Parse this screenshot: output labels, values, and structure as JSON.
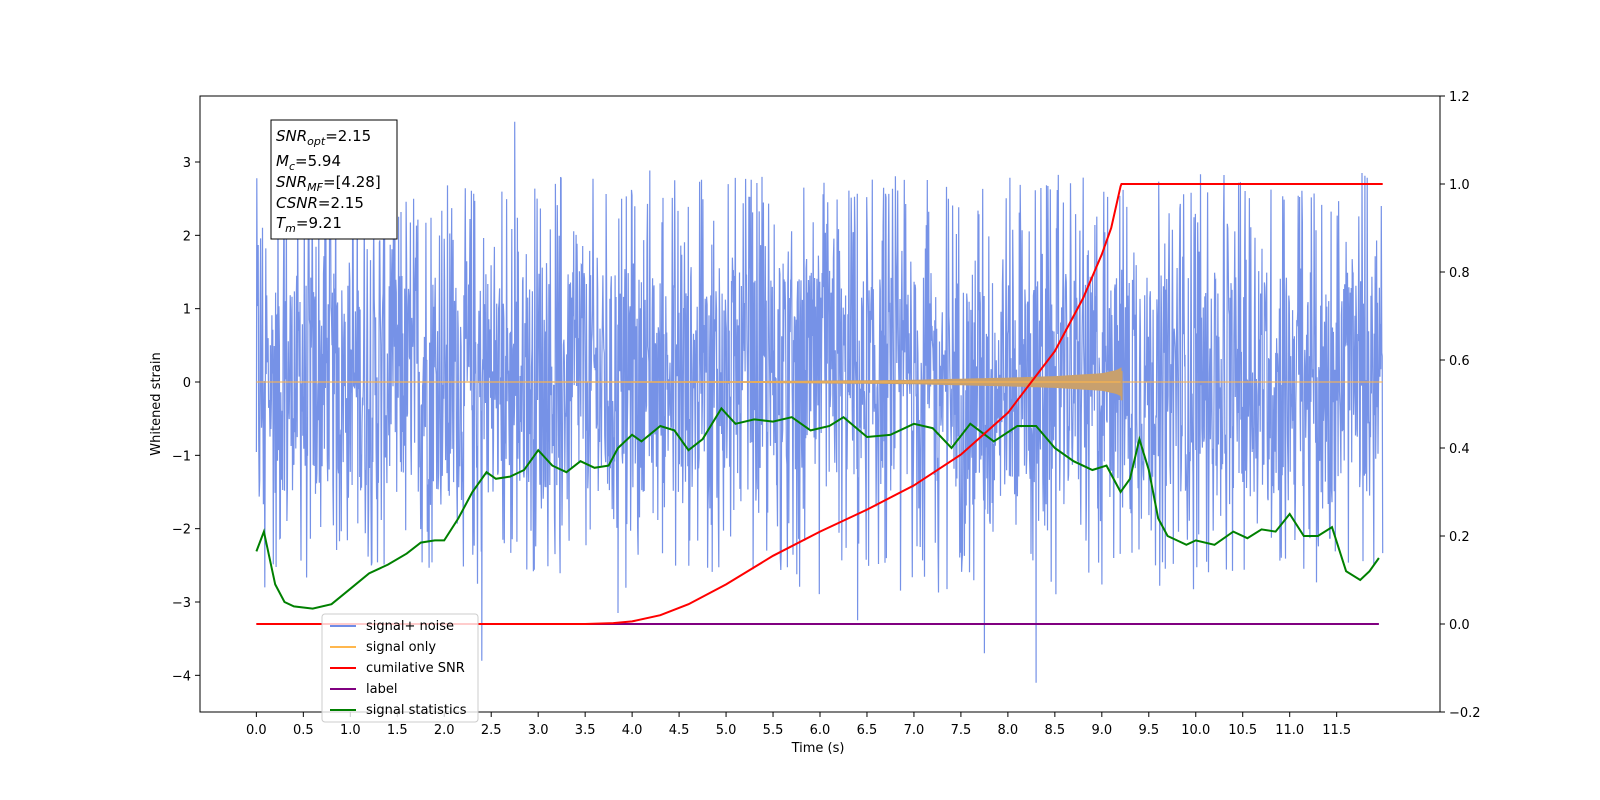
{
  "chart_data": {
    "type": "line",
    "title": "",
    "xlabel": "Time (s)",
    "ylabel": "Whitened strain",
    "ylabel_right": "",
    "xlim": [
      -0.6,
      12.6
    ],
    "ylim": [
      -4.5,
      3.9
    ],
    "ylim_right": [
      -0.2,
      1.2
    ],
    "x_ticks": [
      0.0,
      0.5,
      1.0,
      1.5,
      2.0,
      2.5,
      3.0,
      3.5,
      4.0,
      4.5,
      5.0,
      5.5,
      6.0,
      6.5,
      7.0,
      7.5,
      8.0,
      8.5,
      9.0,
      9.5,
      10.0,
      10.5,
      11.0,
      11.5
    ],
    "x_tick_labels": [
      "0.0",
      "0.5",
      "1.0",
      "1.5",
      "2.0",
      "2.5",
      "3.0",
      "3.5",
      "4.0",
      "4.5",
      "5.0",
      "5.5",
      "6.0",
      "6.5",
      "7.0",
      "7.5",
      "8.0",
      "8.5",
      "9.0",
      "9.5",
      "10.0",
      "10.5",
      "11.0",
      "11.5"
    ],
    "y_ticks": [
      -4,
      -3,
      -2,
      -1,
      0,
      1,
      2,
      3
    ],
    "y_tick_labels": [
      "−4",
      "−3",
      "−2",
      "−1",
      "0",
      "1",
      "2",
      "3"
    ],
    "y_ticks_right": [
      -0.2,
      0.0,
      0.2,
      0.4,
      0.6,
      0.8,
      1.0,
      1.2
    ],
    "y_tick_labels_right": [
      "−0.2",
      "0.0",
      "0.2",
      "0.4",
      "0.6",
      "0.8",
      "1.0",
      "1.2"
    ],
    "grid": false,
    "legend_position": "lower-left",
    "colors": {
      "signal_noise": "#6f8ce6",
      "signal_only": "#ffb74d",
      "signal_only_fill": "#c8a06e",
      "cumulative_snr": "#ff0000",
      "label": "#800080",
      "signal_statistics": "#008000"
    },
    "info_box": {
      "snr_opt": "=2.15",
      "mc": "=5.94",
      "snr_mf": "=[4.28]",
      "csnr": "=2.15",
      "tm": "=9.21"
    },
    "series": [
      {
        "name": "signal+ noise",
        "axis": "left",
        "x_range": [
          0.0,
          11.99
        ],
        "core_range": [
          -1.5,
          1.5
        ],
        "envelope_range": [
          -2.6,
          2.8
        ],
        "peaks": [
          [
            2.75,
            3.55
          ],
          [
            8.3,
            -4.1
          ],
          [
            2.4,
            -3.8
          ],
          [
            7.75,
            -3.7
          ],
          [
            6.4,
            -3.25
          ],
          [
            3.85,
            -3.15
          ]
        ]
      },
      {
        "name": "signal only",
        "axis": "left",
        "x": [
          0.0,
          3.0,
          5.0,
          6.0,
          7.0,
          8.0,
          8.5,
          9.0,
          9.15,
          9.21
        ],
        "amplitude": [
          0.0,
          0.005,
          0.01,
          0.02,
          0.03,
          0.06,
          0.08,
          0.12,
          0.16,
          0.2
        ]
      },
      {
        "name": "cumilative SNR",
        "axis": "right",
        "x": [
          0.0,
          3.5,
          3.8,
          4.0,
          4.3,
          4.6,
          5.0,
          5.5,
          6.0,
          6.5,
          7.0,
          7.5,
          8.0,
          8.5,
          8.8,
          9.0,
          9.1,
          9.2,
          9.21,
          11.99
        ],
        "y": [
          0.0,
          0.0,
          0.002,
          0.006,
          0.02,
          0.045,
          0.09,
          0.155,
          0.21,
          0.26,
          0.315,
          0.385,
          0.48,
          0.62,
          0.74,
          0.84,
          0.9,
          0.995,
          1.0,
          1.0
        ]
      },
      {
        "name": "label",
        "axis": "right",
        "x": [
          0.0,
          11.95
        ],
        "y": [
          0.0,
          0.0
        ]
      },
      {
        "name": "signal statistics",
        "axis": "right",
        "x": [
          0.0,
          0.08,
          0.2,
          0.3,
          0.4,
          0.6,
          0.8,
          1.0,
          1.2,
          1.4,
          1.6,
          1.75,
          1.9,
          2.0,
          2.15,
          2.3,
          2.45,
          2.55,
          2.7,
          2.85,
          3.0,
          3.15,
          3.3,
          3.45,
          3.6,
          3.75,
          3.85,
          4.0,
          4.1,
          4.3,
          4.45,
          4.6,
          4.75,
          4.95,
          5.1,
          5.3,
          5.5,
          5.7,
          5.9,
          6.1,
          6.25,
          6.5,
          6.75,
          7.0,
          7.2,
          7.4,
          7.6,
          7.85,
          8.1,
          8.3,
          8.5,
          8.7,
          8.9,
          9.05,
          9.2,
          9.3,
          9.4,
          9.5,
          9.6,
          9.7,
          9.8,
          9.9,
          10.0,
          10.2,
          10.4,
          10.55,
          10.7,
          10.85,
          11.0,
          11.15,
          11.3,
          11.45,
          11.6,
          11.75,
          11.85,
          11.95
        ],
        "y": [
          0.165,
          0.21,
          0.09,
          0.05,
          0.04,
          0.035,
          0.045,
          0.08,
          0.115,
          0.135,
          0.16,
          0.185,
          0.19,
          0.19,
          0.24,
          0.3,
          0.345,
          0.33,
          0.335,
          0.35,
          0.395,
          0.36,
          0.345,
          0.37,
          0.355,
          0.36,
          0.4,
          0.43,
          0.415,
          0.45,
          0.44,
          0.395,
          0.42,
          0.49,
          0.455,
          0.465,
          0.46,
          0.47,
          0.44,
          0.45,
          0.47,
          0.425,
          0.43,
          0.455,
          0.445,
          0.4,
          0.455,
          0.415,
          0.45,
          0.45,
          0.4,
          0.37,
          0.35,
          0.36,
          0.3,
          0.33,
          0.42,
          0.35,
          0.24,
          0.2,
          0.19,
          0.18,
          0.19,
          0.18,
          0.21,
          0.195,
          0.215,
          0.21,
          0.25,
          0.2,
          0.2,
          0.22,
          0.12,
          0.1,
          0.12,
          0.15
        ]
      }
    ]
  }
}
